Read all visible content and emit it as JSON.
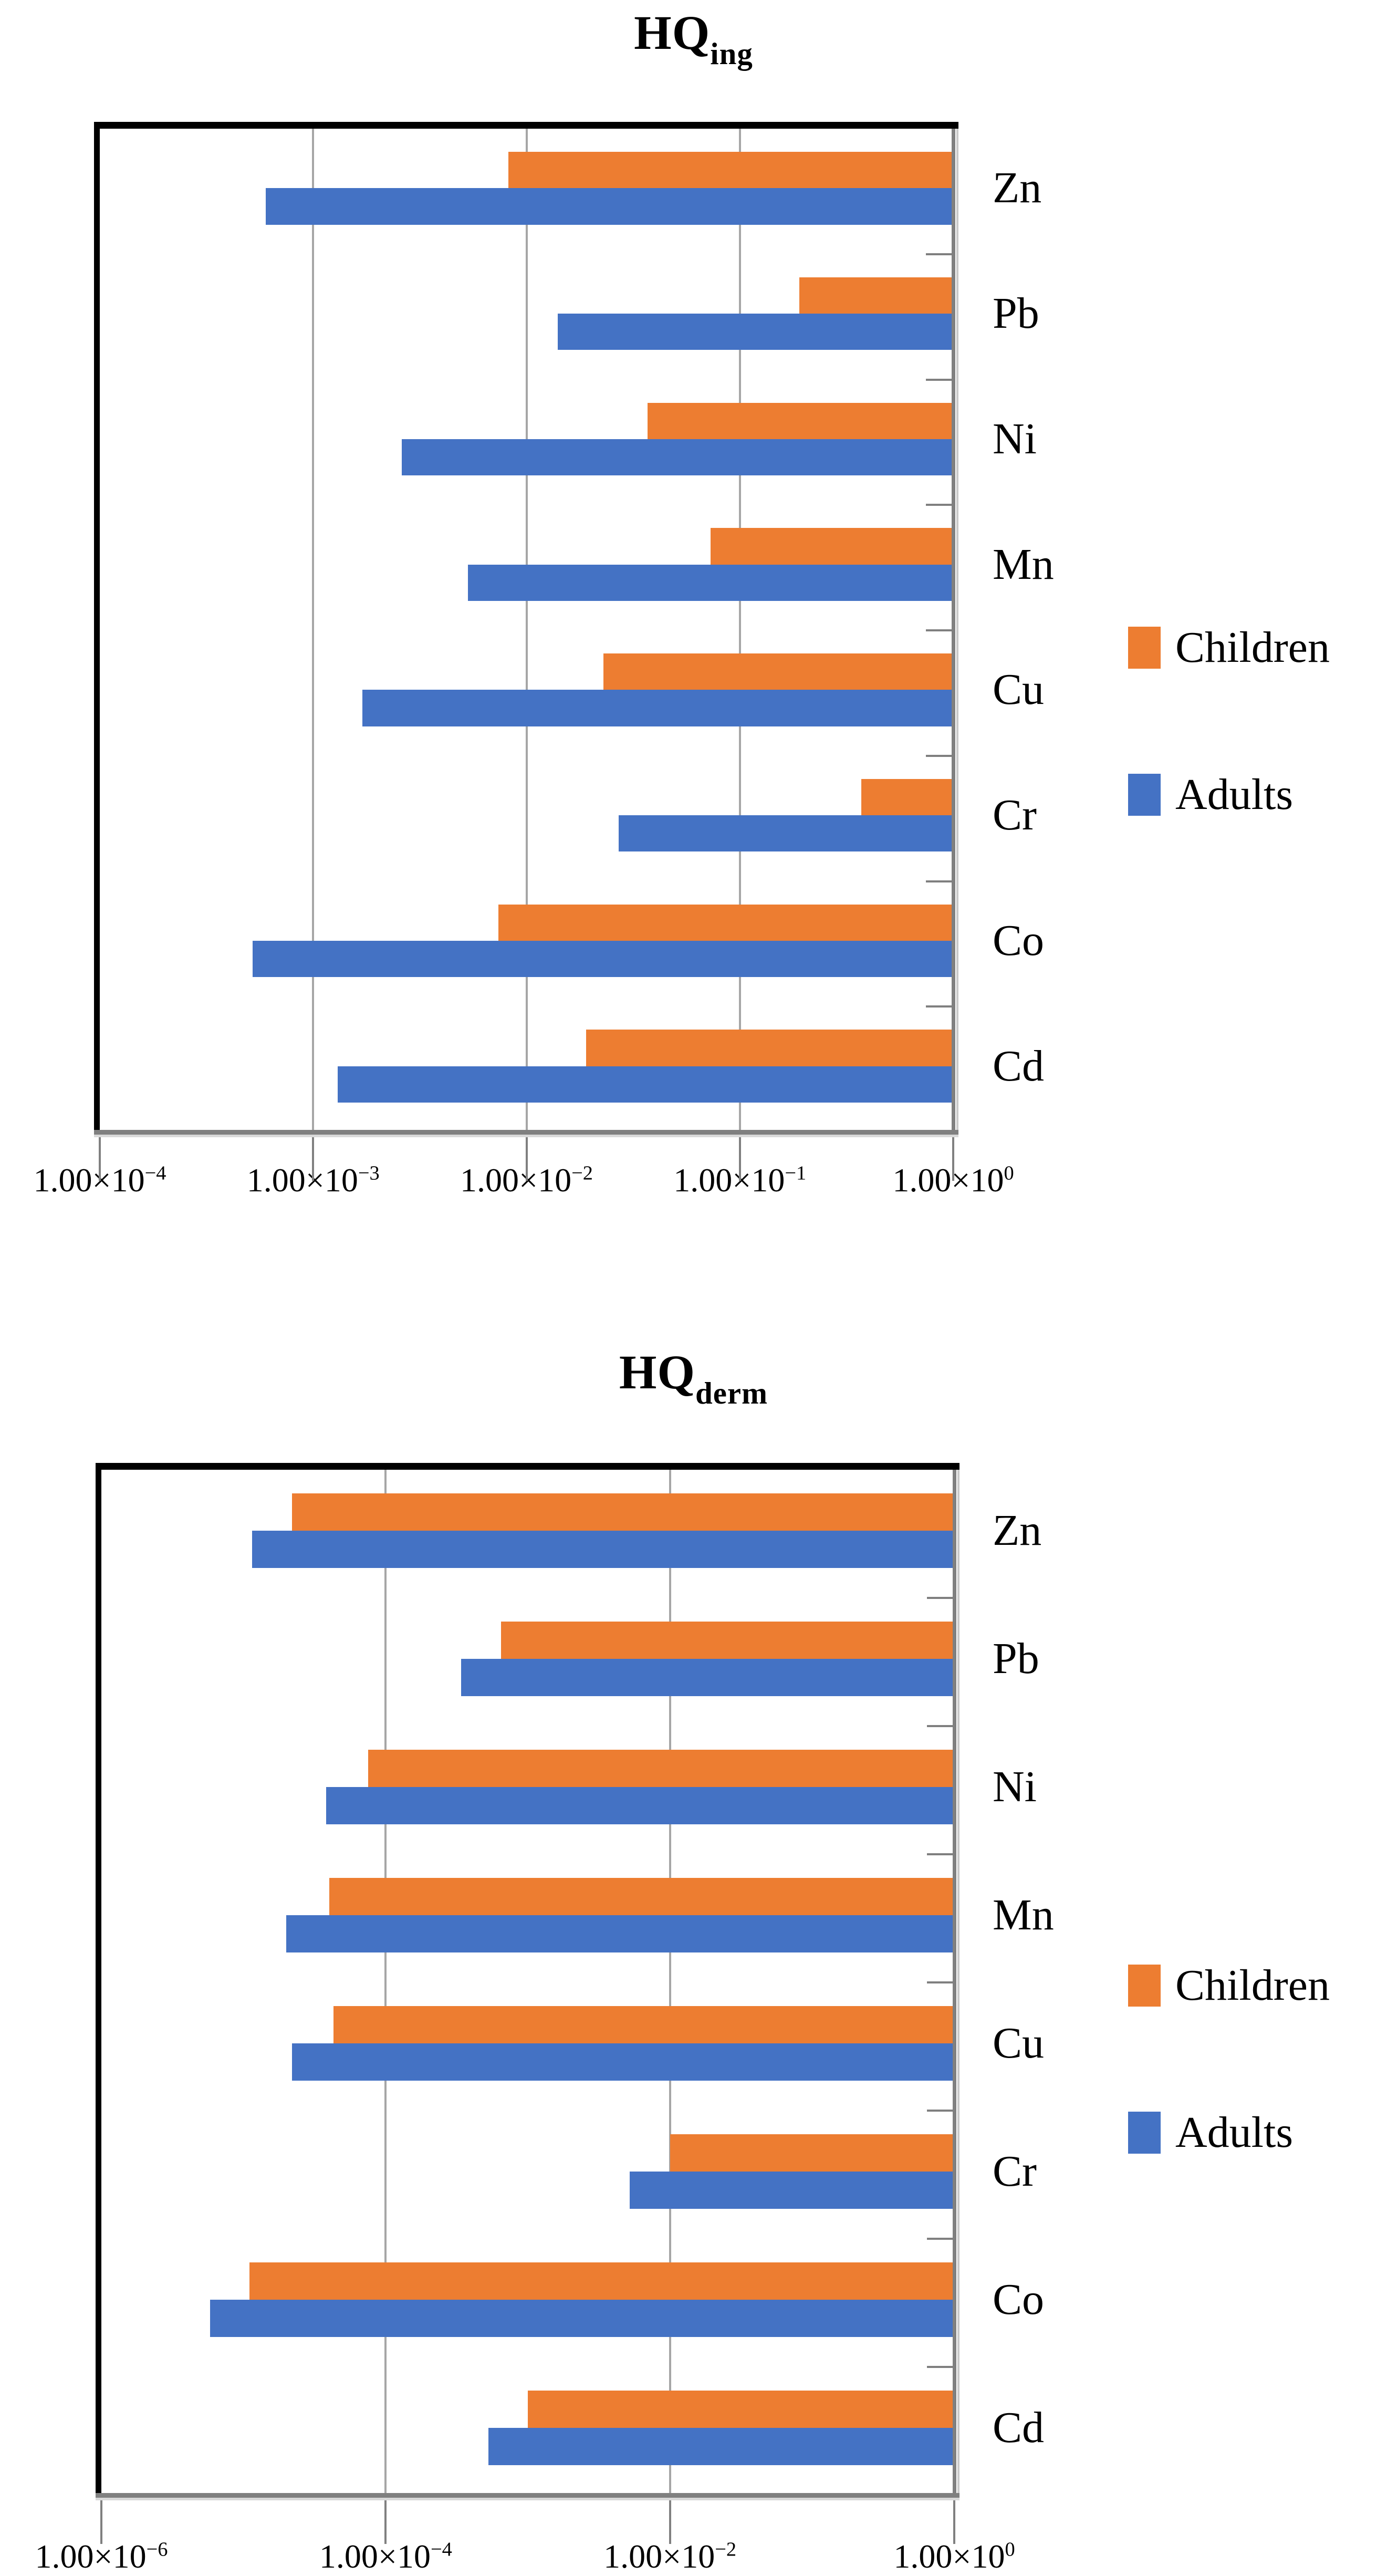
{
  "page": {
    "background": "#ffffff"
  },
  "legend": {
    "children_label": "Children",
    "adults_label": "Adults"
  },
  "colors": {
    "children": "#ED7D31",
    "adults": "#4472C4",
    "gridline": "#A6A6A6",
    "axis": "#808080",
    "border": "#000000"
  },
  "chart_data": [
    {
      "type": "bar",
      "orientation": "horizontal",
      "title_main": "HQ",
      "title_sub": "ing",
      "x_scale": "log",
      "x_min": 0.0001,
      "x_max": 1,
      "x_min_exp": -4,
      "x_max_exp": 0,
      "bar_anchor": 1,
      "grid": true,
      "gridline_exps": [
        -3,
        -2,
        -1
      ],
      "x_ticks": [
        {
          "mantissa": "1.00×10",
          "exp": "−4",
          "value": 0.0001
        },
        {
          "mantissa": "1.00×10",
          "exp": "−3",
          "value": 0.001
        },
        {
          "mantissa": "1.00×10",
          "exp": "−2",
          "value": 0.01
        },
        {
          "mantissa": "1.00×10",
          "exp": "−1",
          "value": 0.1
        },
        {
          "mantissa": "1.00×10",
          "exp": "0",
          "value": 1
        }
      ],
      "categories": [
        "Zn",
        "Pb",
        "Ni",
        "Mn",
        "Cu",
        "Cr",
        "Co",
        "Cd"
      ],
      "series": [
        {
          "name": "Children",
          "color": "#ED7D31",
          "values": [
            0.0082,
            0.19,
            0.037,
            0.073,
            0.023,
            0.37,
            0.0074,
            0.019
          ]
        },
        {
          "name": "Adults",
          "color": "#4472C4",
          "values": [
            0.0006,
            0.014,
            0.0026,
            0.0053,
            0.0017,
            0.027,
            0.00052,
            0.0013
          ]
        }
      ],
      "legend_position": "right"
    },
    {
      "type": "bar",
      "orientation": "horizontal",
      "title_main": "HQ",
      "title_sub": "derm",
      "x_scale": "log",
      "x_min": 1e-06,
      "x_max": 1,
      "x_min_exp": -6,
      "x_max_exp": 0,
      "bar_anchor": 1,
      "grid": true,
      "gridline_exps": [
        -4,
        -2
      ],
      "x_ticks": [
        {
          "mantissa": "1.00×10",
          "exp": "−6",
          "value": 1e-06
        },
        {
          "mantissa": "1.00×10",
          "exp": "−4",
          "value": 0.0001
        },
        {
          "mantissa": "1.00×10",
          "exp": "−2",
          "value": 0.01
        },
        {
          "mantissa": "1.00×10",
          "exp": "0",
          "value": 1
        }
      ],
      "categories": [
        "Zn",
        "Pb",
        "Ni",
        "Mn",
        "Cu",
        "Cr",
        "Co",
        "Cd"
      ],
      "series": [
        {
          "name": "Children",
          "color": "#ED7D31",
          "values": [
            2.2e-05,
            0.00065,
            7.5e-05,
            4e-05,
            4.3e-05,
            0.01,
            1.1e-05,
            0.001
          ]
        },
        {
          "name": "Adults",
          "color": "#4472C4",
          "values": [
            1.15e-05,
            0.00034,
            3.8e-05,
            2e-05,
            2.2e-05,
            0.0052,
            5.8e-06,
            0.00053
          ]
        }
      ],
      "legend_position": "right"
    }
  ]
}
